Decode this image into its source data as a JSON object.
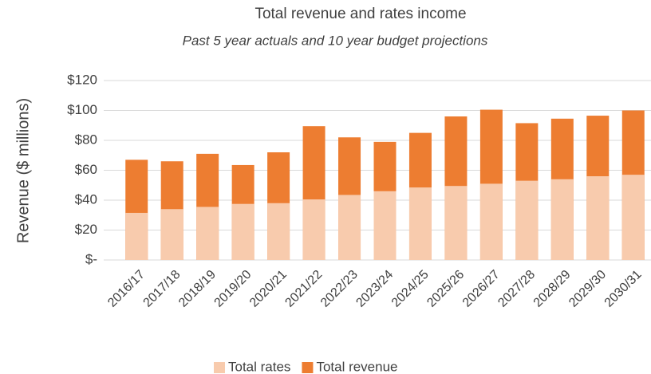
{
  "chart_data": {
    "type": "bar",
    "title": "Total revenue and rates income",
    "subtitle": "Past 5 year actuals and 10 year budget projections",
    "y_label": "Revenue ($ millions)",
    "categories": [
      "2016/17",
      "2017/18",
      "2018/19",
      "2019/20",
      "2020/21",
      "2021/22",
      "2022/23",
      "2023/24",
      "2024/25",
      "2025/26",
      "2026/27",
      "2027/28",
      "2028/29",
      "2029/30",
      "2030/31"
    ],
    "series": [
      {
        "name": "Total rates",
        "color": "#f8cbad",
        "values": [
          31.5,
          34,
          35.5,
          37.5,
          38,
          40.5,
          43.5,
          46,
          48.5,
          49.5,
          51,
          53,
          54,
          56,
          57
        ]
      },
      {
        "name": "Total revenue",
        "color": "#ed7d31",
        "values": [
          67,
          66,
          71,
          63.5,
          72,
          89.5,
          82,
          79,
          85,
          96,
          100.5,
          91.5,
          94.5,
          96.5,
          100
        ]
      }
    ],
    "ylim": [
      0,
      120
    ],
    "yticks": [
      {
        "value": 0,
        "label": "$-"
      },
      {
        "value": 20,
        "label": "$20"
      },
      {
        "value": 40,
        "label": "$40"
      },
      {
        "value": 60,
        "label": "$60"
      },
      {
        "value": 80,
        "label": "$80"
      },
      {
        "value": 100,
        "label": "$100"
      },
      {
        "value": 120,
        "label": "$120"
      }
    ],
    "grid": true,
    "legend": "bottom"
  }
}
